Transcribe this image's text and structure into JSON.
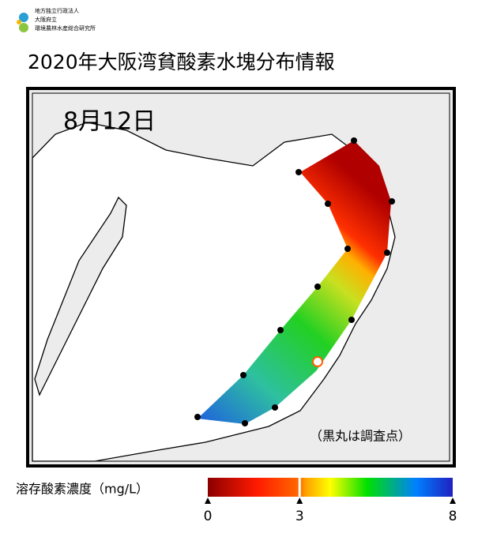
{
  "header": {
    "org_lines": [
      "地方独立行政法人",
      "大阪府立",
      "環境農林水産総合研究所"
    ]
  },
  "title": "2020年大阪湾貧酸素水塊分布情報",
  "map": {
    "date": "8月12日",
    "note": "（黒丸は調査点）"
  },
  "colorbar": {
    "label": "溶存酸素濃度（mg/L）",
    "range": [
      0,
      8
    ],
    "ticks": [
      0,
      3,
      8
    ],
    "threshold": 3
  }
}
